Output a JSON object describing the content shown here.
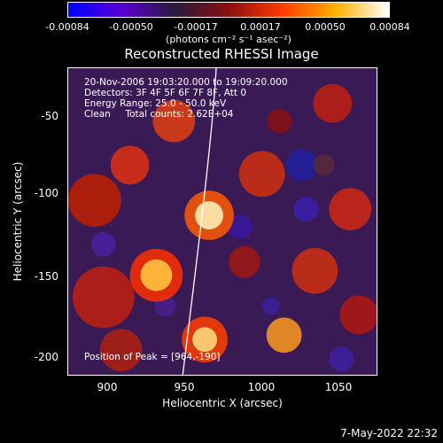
{
  "colorbar": {
    "ticks": [
      "-0.00084",
      "-0.00050",
      "-0.00017",
      "0.00017",
      "0.00050",
      "0.00084"
    ],
    "units": "(photons cm⁻² s⁻¹ asec⁻²)",
    "colors": [
      "#0000ff",
      "#5a00d4",
      "#2a1a3a",
      "#8a1010",
      "#ff3a00",
      "#ffb000",
      "#ffffff"
    ]
  },
  "plot": {
    "title": "Reconstructed RHESSI Image",
    "xlabel": "Heliocentric X (arcsec)",
    "ylabel": "Heliocentric Y (arcsec)",
    "xticks": [
      "900",
      "950",
      "1000",
      "1050"
    ],
    "yticks": [
      "-50",
      "-100",
      "-150",
      "-200"
    ],
    "annotations": {
      "time": "20-Nov-2006 19:03:20.000 to 19:09:20.000",
      "detectors": "Detectors: 3F 4F 5F 6F 7F 8F, Att 0",
      "energy": "Energy Range: 25.0 - 50.0 keV",
      "algorithm": "Clean     Total counts: 2.62E+04",
      "peak": "Position of Peak = [964,-190]"
    }
  },
  "footer": {
    "timestamp": "7-May-2022 22:32"
  }
}
